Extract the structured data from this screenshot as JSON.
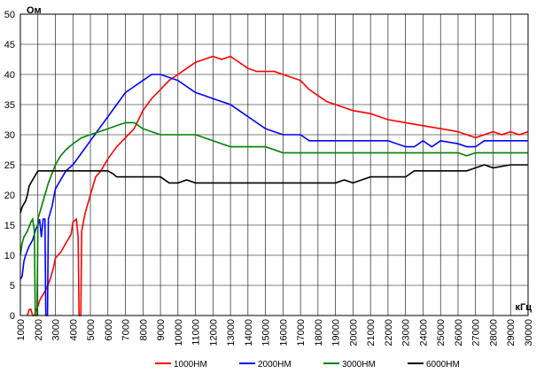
{
  "chart_data": {
    "type": "line",
    "ylabel": "Ом",
    "xlabel": "кГц",
    "xlim": [
      1000,
      30000
    ],
    "ylim": [
      0,
      50
    ],
    "x_ticks": [
      1000,
      2000,
      3000,
      4000,
      5000,
      6000,
      7000,
      8000,
      9000,
      10000,
      11000,
      12000,
      13000,
      14000,
      15000,
      16000,
      17000,
      18000,
      19000,
      20000,
      21000,
      22000,
      23000,
      24000,
      25000,
      26000,
      27000,
      28000,
      29000,
      30000
    ],
    "x_tick_labels": [
      "1000",
      "2000",
      "3000",
      "4000",
      "5000",
      "6000",
      "7000",
      "8000",
      "9000",
      "10000",
      "11000",
      "12000",
      "13000",
      "14000",
      "15000",
      "16000",
      "17000",
      "18000",
      "19000",
      "20000",
      "21000",
      "22000",
      "23000",
      "24000",
      "25000",
      "26000",
      "27000",
      "28000",
      "29000",
      "30000"
    ],
    "y_ticks": [
      0,
      5,
      10,
      15,
      20,
      25,
      30,
      35,
      40,
      45,
      50
    ],
    "y_tick_labels": [
      "0",
      "5",
      "10",
      "15",
      "20",
      "25",
      "30",
      "35",
      "40",
      "45",
      "50"
    ],
    "grid": true,
    "legend_position": "bottom",
    "series": [
      {
        "name": "1000НМ",
        "color": "#ff0000",
        "points": [
          [
            1400,
            0
          ],
          [
            1500,
            1
          ],
          [
            1600,
            1
          ],
          [
            1700,
            0
          ],
          [
            1800,
            0
          ],
          [
            1900,
            1
          ],
          [
            2000,
            1.5
          ],
          [
            2100,
            2.5
          ],
          [
            2300,
            3.5
          ],
          [
            2500,
            4.5
          ],
          [
            2700,
            6
          ],
          [
            2900,
            8
          ],
          [
            3000,
            9.5
          ],
          [
            3300,
            10.5
          ],
          [
            3600,
            12
          ],
          [
            3900,
            13.5
          ],
          [
            4000,
            15.5
          ],
          [
            4200,
            16
          ],
          [
            4300,
            13
          ],
          [
            4350,
            0
          ],
          [
            4450,
            0
          ],
          [
            4500,
            14
          ],
          [
            4700,
            17
          ],
          [
            5000,
            20
          ],
          [
            5300,
            23
          ],
          [
            5600,
            24
          ],
          [
            6000,
            26
          ],
          [
            6500,
            28
          ],
          [
            7000,
            29.5
          ],
          [
            7500,
            31
          ],
          [
            8000,
            34
          ],
          [
            8500,
            36
          ],
          [
            9000,
            37.5
          ],
          [
            9500,
            39
          ],
          [
            10000,
            40
          ],
          [
            10500,
            41
          ],
          [
            11000,
            42
          ],
          [
            11500,
            42.5
          ],
          [
            12000,
            43
          ],
          [
            12500,
            42.5
          ],
          [
            13000,
            43
          ],
          [
            13500,
            42
          ],
          [
            14000,
            41
          ],
          [
            14500,
            40.5
          ],
          [
            15500,
            40.5
          ],
          [
            16000,
            40
          ],
          [
            16500,
            39.5
          ],
          [
            17000,
            39
          ],
          [
            17500,
            37.5
          ],
          [
            18000,
            36.5
          ],
          [
            18500,
            35.5
          ],
          [
            19000,
            35
          ],
          [
            19500,
            34.5
          ],
          [
            20000,
            34
          ],
          [
            21000,
            33.5
          ],
          [
            21500,
            33
          ],
          [
            22000,
            32.5
          ],
          [
            23000,
            32
          ],
          [
            24000,
            31.5
          ],
          [
            25000,
            31
          ],
          [
            26000,
            30.5
          ],
          [
            26500,
            30
          ],
          [
            27000,
            29.5
          ],
          [
            27500,
            30
          ],
          [
            28000,
            30.5
          ],
          [
            28500,
            30
          ],
          [
            29000,
            30.5
          ],
          [
            29500,
            30
          ],
          [
            30000,
            30.5
          ]
        ]
      },
      {
        "name": "2000НМ",
        "color": "#0000ff",
        "points": [
          [
            1000,
            6
          ],
          [
            1100,
            6.5
          ],
          [
            1200,
            9
          ],
          [
            1300,
            10
          ],
          [
            1500,
            11.5
          ],
          [
            1700,
            12.5
          ],
          [
            1900,
            14.5
          ],
          [
            2000,
            15
          ],
          [
            2100,
            16
          ],
          [
            2200,
            13
          ],
          [
            2300,
            16
          ],
          [
            2400,
            16
          ],
          [
            2450,
            0
          ],
          [
            2550,
            0
          ],
          [
            2600,
            16
          ],
          [
            2800,
            18
          ],
          [
            3000,
            21
          ],
          [
            3300,
            22.5
          ],
          [
            3600,
            24
          ],
          [
            4000,
            25
          ],
          [
            4500,
            27
          ],
          [
            5000,
            29
          ],
          [
            5500,
            31
          ],
          [
            6000,
            33
          ],
          [
            6500,
            35
          ],
          [
            7000,
            37
          ],
          [
            7500,
            38
          ],
          [
            8000,
            39
          ],
          [
            8500,
            40
          ],
          [
            9000,
            40
          ],
          [
            9500,
            39.5
          ],
          [
            10000,
            39
          ],
          [
            10500,
            38
          ],
          [
            11000,
            37
          ],
          [
            11500,
            36.5
          ],
          [
            12000,
            36
          ],
          [
            12500,
            35.5
          ],
          [
            13000,
            35
          ],
          [
            13500,
            34
          ],
          [
            14000,
            33
          ],
          [
            14500,
            32
          ],
          [
            15000,
            31
          ],
          [
            15500,
            30.5
          ],
          [
            16000,
            30
          ],
          [
            16500,
            30
          ],
          [
            17000,
            30
          ],
          [
            17500,
            29
          ],
          [
            18000,
            29
          ],
          [
            19000,
            29
          ],
          [
            20000,
            29
          ],
          [
            21000,
            29
          ],
          [
            22000,
            29
          ],
          [
            23000,
            28
          ],
          [
            23500,
            28
          ],
          [
            24000,
            29
          ],
          [
            24500,
            28
          ],
          [
            25000,
            29
          ],
          [
            26000,
            28.5
          ],
          [
            26500,
            28
          ],
          [
            27000,
            28
          ],
          [
            27500,
            29
          ],
          [
            28000,
            29
          ],
          [
            29000,
            29
          ],
          [
            30000,
            29
          ]
        ]
      },
      {
        "name": "3000НМ",
        "color": "#008000",
        "points": [
          [
            1000,
            10
          ],
          [
            1100,
            12
          ],
          [
            1200,
            13
          ],
          [
            1400,
            14
          ],
          [
            1600,
            15.5
          ],
          [
            1700,
            16
          ],
          [
            1800,
            14
          ],
          [
            1850,
            0
          ],
          [
            1950,
            0
          ],
          [
            2000,
            16
          ],
          [
            2200,
            18
          ],
          [
            2400,
            20
          ],
          [
            2600,
            22
          ],
          [
            2800,
            23.5
          ],
          [
            3000,
            25
          ],
          [
            3300,
            26.5
          ],
          [
            3600,
            27.5
          ],
          [
            4000,
            28.5
          ],
          [
            4500,
            29.5
          ],
          [
            5000,
            30
          ],
          [
            5500,
            30.5
          ],
          [
            6000,
            31
          ],
          [
            6500,
            31.5
          ],
          [
            7000,
            32
          ],
          [
            7500,
            32
          ],
          [
            8000,
            31
          ],
          [
            8500,
            30.5
          ],
          [
            9000,
            30
          ],
          [
            10000,
            30
          ],
          [
            11000,
            30
          ],
          [
            11500,
            29.5
          ],
          [
            12000,
            29
          ],
          [
            12500,
            28.5
          ],
          [
            13000,
            28
          ],
          [
            14000,
            28
          ],
          [
            15000,
            28
          ],
          [
            15500,
            27.5
          ],
          [
            16000,
            27
          ],
          [
            17000,
            27
          ],
          [
            18000,
            27
          ],
          [
            19000,
            27
          ],
          [
            20000,
            27
          ],
          [
            21000,
            27
          ],
          [
            22000,
            27
          ],
          [
            23000,
            27
          ],
          [
            24000,
            27
          ],
          [
            25000,
            27
          ],
          [
            26000,
            27
          ],
          [
            26500,
            26.5
          ],
          [
            27000,
            27
          ],
          [
            28000,
            27
          ],
          [
            29000,
            27
          ],
          [
            30000,
            27
          ]
        ]
      },
      {
        "name": "6000НМ",
        "color": "#000000",
        "points": [
          [
            1000,
            17
          ],
          [
            1100,
            18
          ],
          [
            1300,
            19
          ],
          [
            1400,
            20
          ],
          [
            1500,
            21.5
          ],
          [
            1700,
            22.5
          ],
          [
            1900,
            23.5
          ],
          [
            2000,
            24
          ],
          [
            2500,
            24
          ],
          [
            3000,
            24
          ],
          [
            4000,
            24
          ],
          [
            5000,
            24
          ],
          [
            6000,
            24
          ],
          [
            6300,
            23.5
          ],
          [
            6500,
            23
          ],
          [
            7000,
            23
          ],
          [
            8000,
            23
          ],
          [
            9000,
            23
          ],
          [
            9500,
            22
          ],
          [
            10000,
            22
          ],
          [
            10500,
            22.5
          ],
          [
            11000,
            22
          ],
          [
            12000,
            22
          ],
          [
            13000,
            22
          ],
          [
            14000,
            22
          ],
          [
            15000,
            22
          ],
          [
            16000,
            22
          ],
          [
            17000,
            22
          ],
          [
            18000,
            22
          ],
          [
            19000,
            22
          ],
          [
            19500,
            22.5
          ],
          [
            20000,
            22
          ],
          [
            20500,
            22.5
          ],
          [
            21000,
            23
          ],
          [
            22000,
            23
          ],
          [
            23000,
            23
          ],
          [
            23500,
            24
          ],
          [
            24000,
            24
          ],
          [
            25000,
            24
          ],
          [
            26000,
            24
          ],
          [
            26500,
            24
          ],
          [
            27000,
            24.5
          ],
          [
            27500,
            25
          ],
          [
            28000,
            24.5
          ],
          [
            29000,
            25
          ],
          [
            30000,
            25
          ]
        ]
      }
    ]
  }
}
